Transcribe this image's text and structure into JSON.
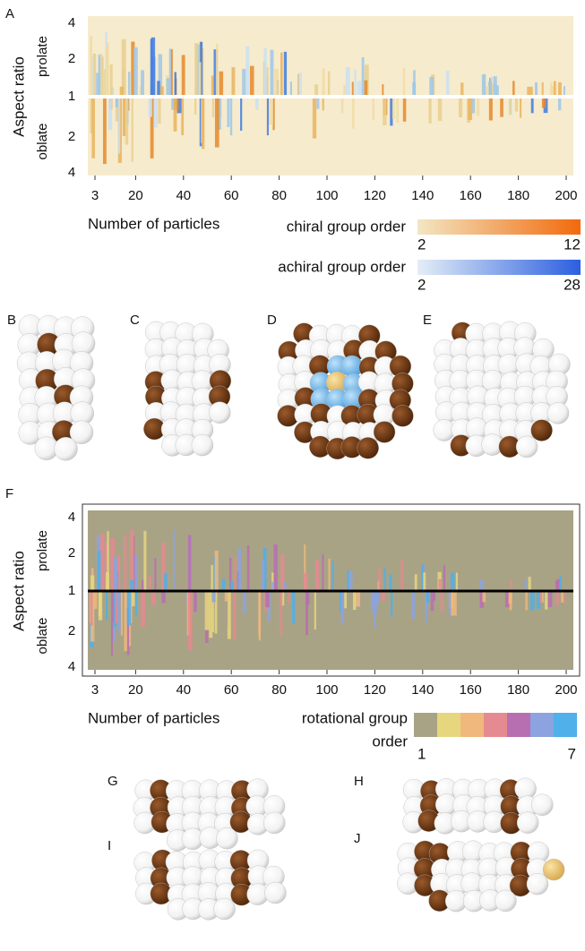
{
  "panel_a": {
    "label": "A",
    "y_label": "Aspect ratio",
    "y_sides": [
      "prolate",
      "oblate"
    ],
    "y_tick_labels": [
      "4",
      "2",
      "1",
      "2",
      "4"
    ],
    "xticks": [
      3,
      20,
      40,
      60,
      80,
      100,
      120,
      140,
      160,
      180,
      200
    ],
    "x_label": "Number of particles",
    "colorbars": [
      {
        "title": "chiral group order",
        "min": 2,
        "max": 12,
        "colors": [
          "#f3e6c3",
          "#f26a0c"
        ]
      },
      {
        "title": "achiral group order",
        "min": 2,
        "max": 28,
        "colors": [
          "#e4eef6",
          "#2b5fe0"
        ]
      }
    ]
  },
  "cluster_panels": [
    "B",
    "C",
    "D",
    "E"
  ],
  "panel_f": {
    "label": "F",
    "y_label": "Aspect ratio",
    "y_sides": [
      "prolate",
      "oblate"
    ],
    "y_tick_labels": [
      "4",
      "2",
      "1",
      "2",
      "4"
    ],
    "xticks": [
      3,
      20,
      40,
      60,
      80,
      100,
      120,
      140,
      160,
      180,
      200
    ],
    "x_label": "Number of particles",
    "colorbar": {
      "title": [
        "rotational group",
        "order"
      ],
      "min": 1,
      "max": 7,
      "colors": [
        "#a9a385",
        "#e6d77e",
        "#f0b87c",
        "#e58a90",
        "#b86fb2",
        "#8ca3df",
        "#4fb0ea"
      ]
    }
  },
  "bottom_panels": [
    "G",
    "H",
    "I",
    "J"
  ]
}
